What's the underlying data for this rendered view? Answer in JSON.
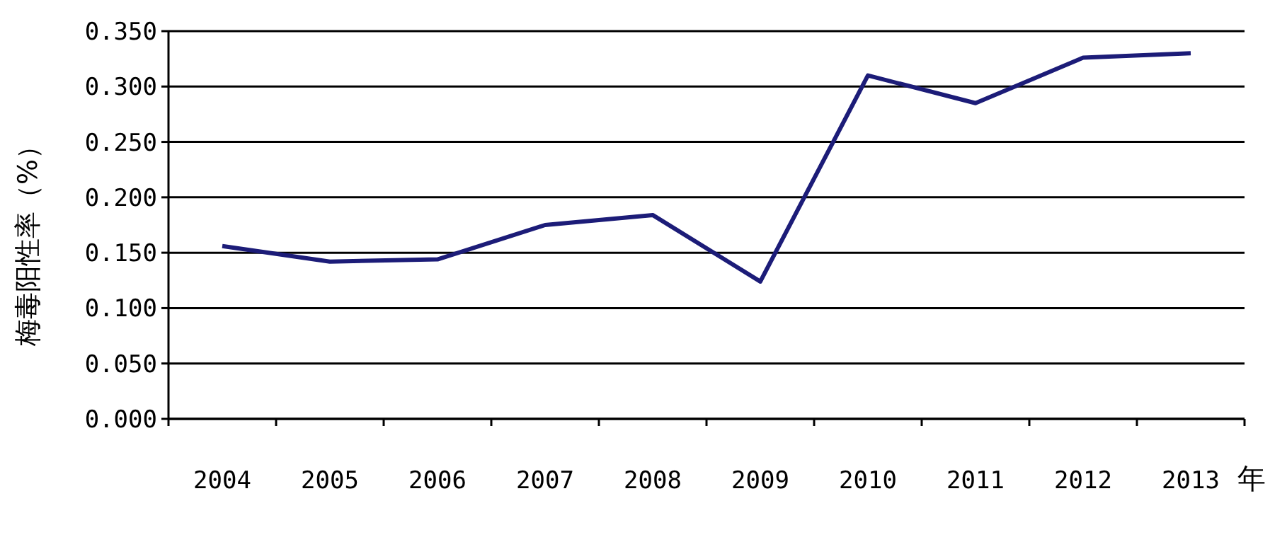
{
  "chart_data": {
    "type": "line",
    "ylabel": "梅毒阳性率（%）",
    "xlabel": "年",
    "categories": [
      "2004",
      "2005",
      "2006",
      "2007",
      "2008",
      "2009",
      "2010",
      "2011",
      "2012",
      "2013"
    ],
    "series": [
      {
        "color": "#1c1c78",
        "values": [
          0.156,
          0.142,
          0.144,
          0.175,
          0.184,
          0.124,
          0.31,
          0.285,
          0.326,
          0.33
        ]
      }
    ],
    "ylim": [
      0,
      0.35
    ],
    "yticks": [
      {
        "value": 0,
        "label": "0.000"
      },
      {
        "value": 0.05,
        "label": "0.050"
      },
      {
        "value": 0.1,
        "label": "0.100"
      },
      {
        "value": 0.15,
        "label": "0.150"
      },
      {
        "value": 0.2,
        "label": "0.200"
      },
      {
        "value": 0.25,
        "label": "0.250"
      },
      {
        "value": 0.3,
        "label": "0.300"
      },
      {
        "value": 0.35,
        "label": "0.350"
      }
    ],
    "grid": "y",
    "marker": "none",
    "line_style": "solid"
  }
}
